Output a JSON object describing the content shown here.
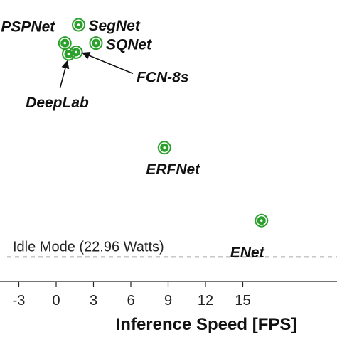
{
  "chart_data": {
    "type": "scatter",
    "xlabel": "Inference Speed [FPS]",
    "xticks": [
      -3,
      0,
      3,
      6,
      9,
      12,
      15
    ],
    "grid": false,
    "marker_color": "#2ca02c",
    "points": [
      {
        "label": "SegNet",
        "x": 1.8,
        "y": 455
      },
      {
        "label": "PSPNet",
        "x": 0.7,
        "y": 435
      },
      {
        "label": "SQNet",
        "x": 3.2,
        "y": 435
      },
      {
        "label": "FCN-8s",
        "x": 1.6,
        "y": 425
      },
      {
        "label": "DeepLab",
        "x": 1.0,
        "y": 423
      },
      {
        "label": "ERFNet",
        "x": 8.7,
        "y": 320
      },
      {
        "label": "ENet",
        "x": 16.5,
        "y": 240
      }
    ],
    "reference_line": {
      "label": "Idle Mode (22.96 Watts)",
      "y": 200,
      "style": "dashed"
    }
  }
}
